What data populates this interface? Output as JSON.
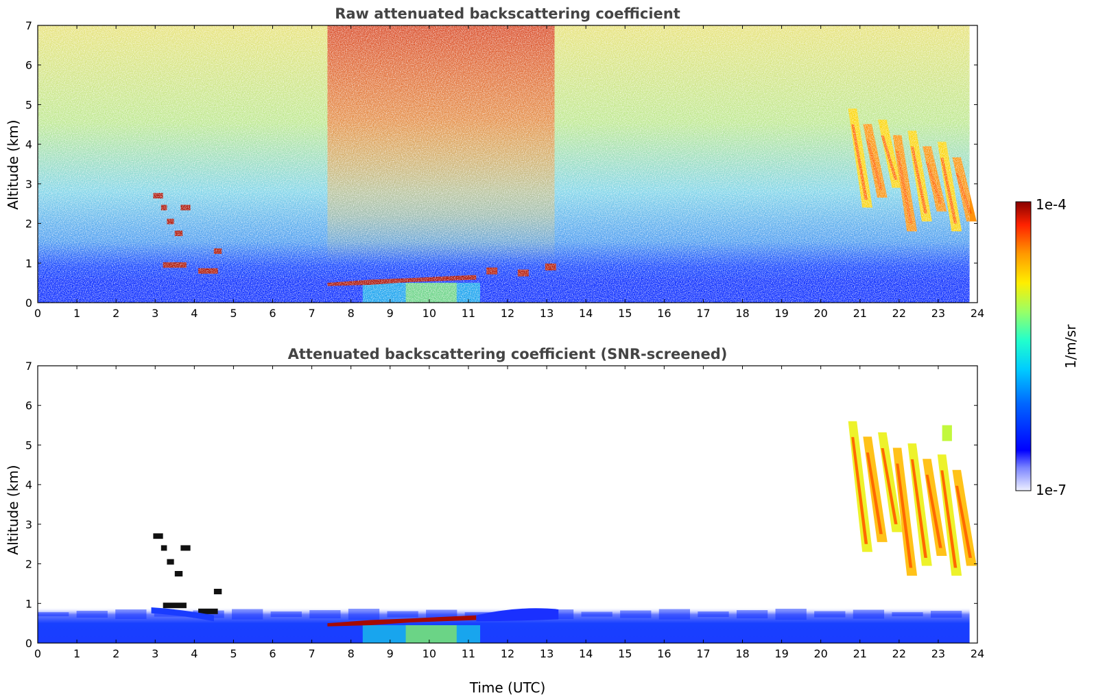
{
  "chart_data": [
    {
      "type": "heatmap",
      "title": "Raw attenuated backscattering coefficient",
      "xlabel": "",
      "ylabel": "Altitude (km)",
      "xlim": [
        0,
        24
      ],
      "ylim": [
        0,
        7
      ],
      "xticks": [
        0,
        1,
        2,
        3,
        4,
        5,
        6,
        7,
        8,
        9,
        10,
        11,
        12,
        13,
        14,
        15,
        16,
        17,
        18,
        19,
        20,
        21,
        22,
        23,
        24
      ],
      "yticks": [
        0,
        1,
        2,
        3,
        4,
        5,
        6,
        7
      ],
      "data_end_x": 23.8,
      "features": [
        {
          "name": "boundary-layer",
          "x": [
            0,
            23.8
          ],
          "y": [
            0,
            0.6
          ],
          "level": 0.12
        },
        {
          "name": "low-cloud-layer",
          "x": [
            7.4,
            11.3
          ],
          "y": [
            0.5,
            0.65
          ],
          "level": 0.98
        },
        {
          "name": "noisy-upper-signal",
          "x": [
            7.4,
            13.2
          ],
          "y": [
            1,
            7
          ],
          "level": 0.7
        },
        {
          "name": "cirrus-bands",
          "x": [
            20.7,
            23.8
          ],
          "y": [
            1.8,
            4.9
          ],
          "level": 0.75
        },
        {
          "name": "elevated-cloud-traces",
          "x": [
            2.9,
            4.6
          ],
          "y": [
            0.7,
            2.8
          ],
          "level": 0.98
        }
      ]
    },
    {
      "type": "heatmap",
      "title": "Attenuated backscattering coefficient (SNR-screened)",
      "xlabel": "Time (UTC)",
      "ylabel": "Altitude (km)",
      "xlim": [
        0,
        24
      ],
      "ylim": [
        0,
        7
      ],
      "xticks": [
        0,
        1,
        2,
        3,
        4,
        5,
        6,
        7,
        8,
        9,
        10,
        11,
        12,
        13,
        14,
        15,
        16,
        17,
        18,
        19,
        20,
        21,
        22,
        23,
        24
      ],
      "yticks": [
        0,
        1,
        2,
        3,
        4,
        5,
        6,
        7
      ],
      "data_end_x": 23.8,
      "features": [
        {
          "name": "boundary-layer",
          "x": [
            0,
            23.8
          ],
          "y": [
            0,
            0.9
          ],
          "level": 0.12
        },
        {
          "name": "low-cloud-layer",
          "x": [
            7.4,
            13.3
          ],
          "y": [
            0.45,
            0.95
          ],
          "level": 0.98
        },
        {
          "name": "cirrus-bands",
          "x": [
            20.7,
            23.8
          ],
          "y": [
            1.7,
            5.6
          ],
          "level": 0.7
        },
        {
          "name": "elevated-cloud-traces",
          "x": [
            2.9,
            4.6
          ],
          "y": [
            0.7,
            2.8
          ],
          "level": 0.98
        }
      ]
    }
  ],
  "colorbar": {
    "label": "1/m/sr",
    "min_label": "1e-7",
    "max_label": "1e-4",
    "colormap": "jet"
  }
}
